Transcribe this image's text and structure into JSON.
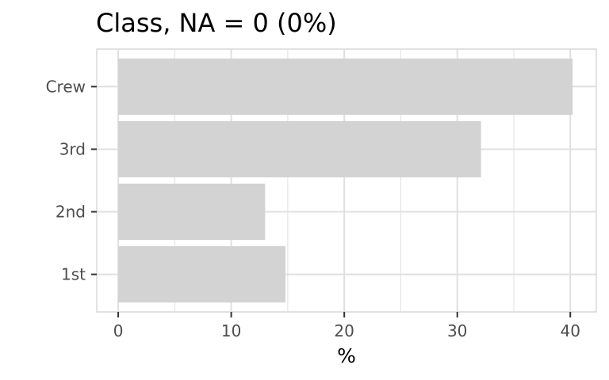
{
  "chart_data": {
    "type": "bar",
    "orientation": "horizontal",
    "title": "Class, NA = 0 (0%)",
    "xlabel": "%",
    "ylabel": "",
    "categories": [
      "1st",
      "2nd",
      "3rd",
      "Crew"
    ],
    "values": [
      14.8,
      13.0,
      32.1,
      40.2
    ],
    "xlim": [
      -1.9,
      42.3
    ],
    "x_ticks": [
      0,
      10,
      20,
      30,
      40
    ],
    "grid": true,
    "legend": "none",
    "bar_color": "#d3d3d3",
    "panel_border_color": "#d9d9d9",
    "grid_color": "#e0e0e0"
  }
}
